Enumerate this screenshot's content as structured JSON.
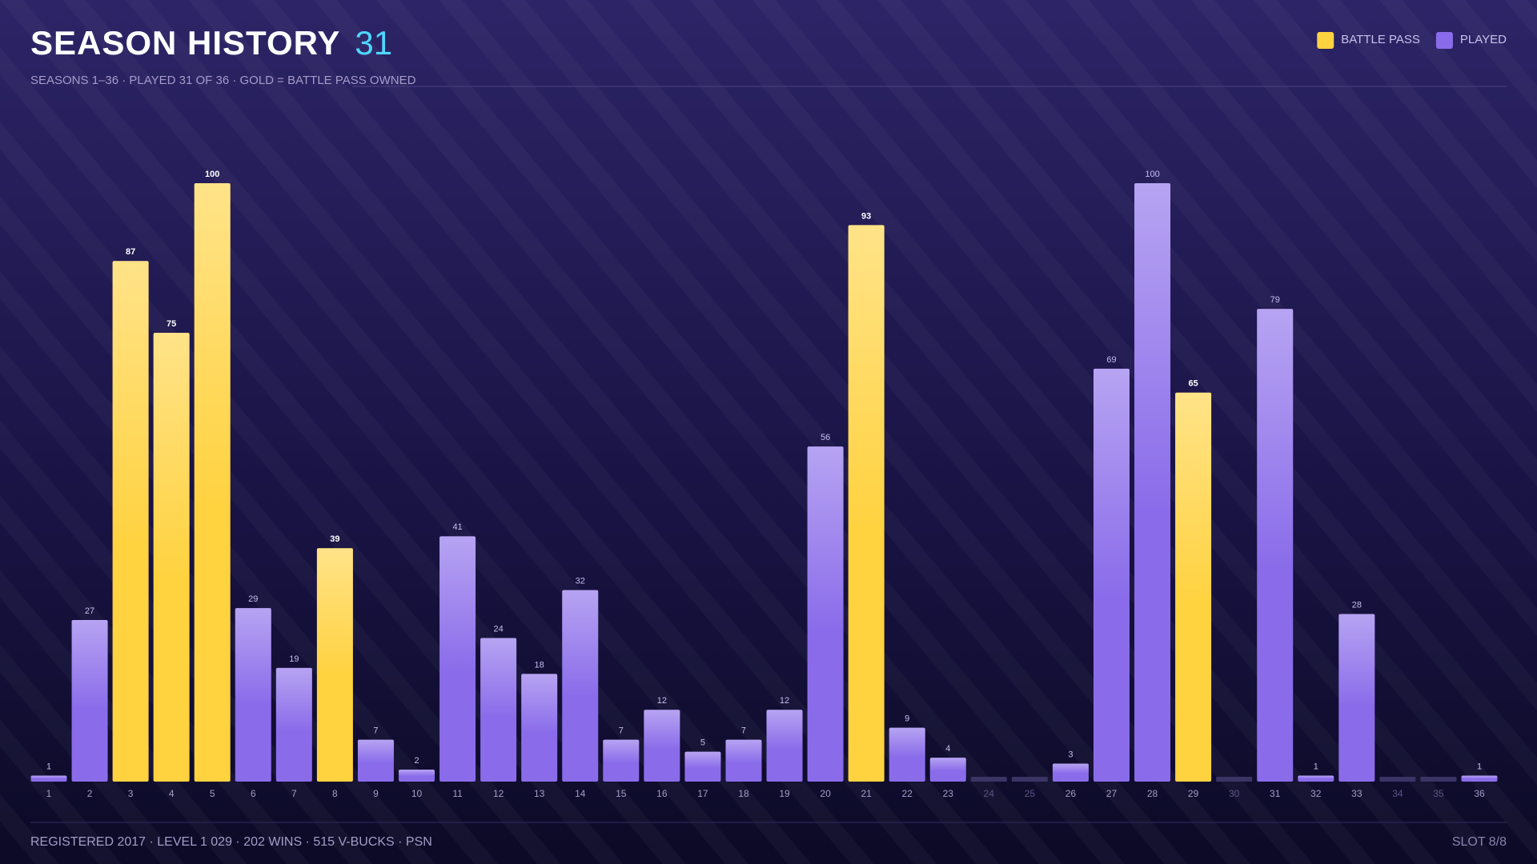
{
  "chart_data": {
    "type": "bar",
    "title": "SEASON HISTORY",
    "title_count": 31,
    "subtitle": "SEASONS 1–36 · PLAYED 31 OF 36 · GOLD = BATTLE PASS OWNED",
    "footer": "REGISTERED 2017 · LEVEL 1 029 · 202 WINS · 515 V-BUCKS · PSN",
    "footer_right": "SLOT 8/8",
    "categories": [
      "1",
      "2",
      "3",
      "4",
      "5",
      "6",
      "7",
      "8",
      "9",
      "10",
      "11",
      "12",
      "13",
      "14",
      "15",
      "16",
      "17",
      "18",
      "19",
      "20",
      "21",
      "22",
      "23",
      "24",
      "25",
      "26",
      "27",
      "28",
      "29",
      "30",
      "31",
      "32",
      "33",
      "34",
      "35",
      "36"
    ],
    "series": [
      {
        "name": "BATTLE PASS",
        "color": "#ffd23f",
        "values": [
          null,
          null,
          87,
          75,
          100,
          null,
          null,
          39,
          null,
          null,
          null,
          null,
          null,
          null,
          null,
          null,
          null,
          null,
          null,
          null,
          93,
          null,
          null,
          null,
          null,
          null,
          null,
          null,
          65,
          null,
          null,
          null,
          null,
          null,
          null,
          null
        ]
      },
      {
        "name": "PLAYED",
        "color": "#8a6cea",
        "values": [
          1,
          27,
          null,
          null,
          null,
          29,
          19,
          null,
          7,
          2,
          41,
          24,
          18,
          32,
          7,
          12,
          5,
          7,
          12,
          56,
          null,
          9,
          4,
          null,
          null,
          3,
          69,
          100,
          null,
          null,
          79,
          1,
          28,
          null,
          null,
          1
        ]
      }
    ],
    "ylim": [
      0,
      100
    ],
    "legend": "top-right"
  }
}
